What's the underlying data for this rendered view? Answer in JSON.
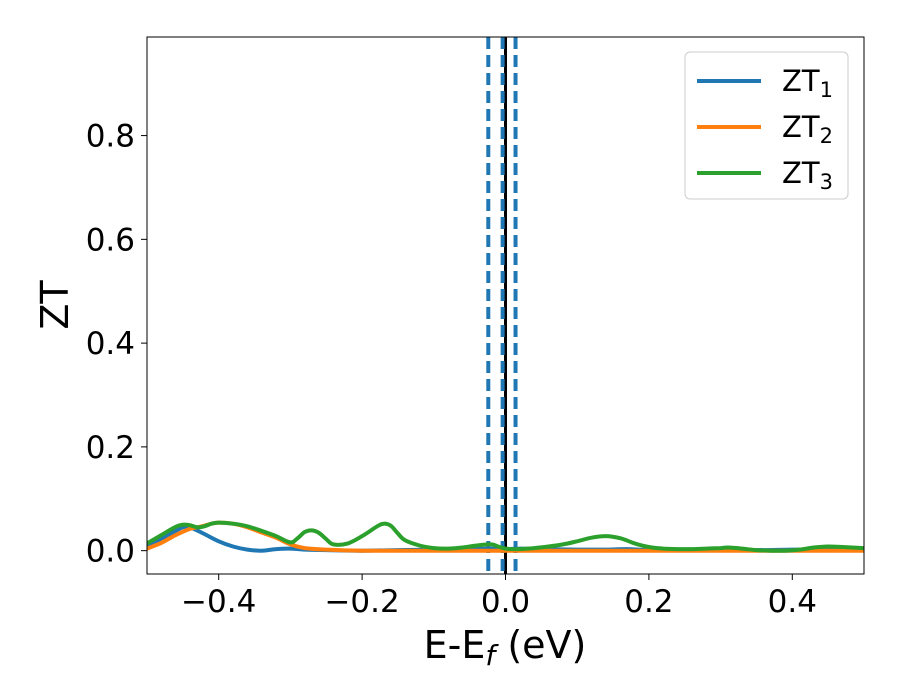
{
  "chart_data": {
    "type": "line",
    "title": "",
    "xlabel": "E-E",
    "xlabel_sub": "f",
    "xlabel_unit": " (eV)",
    "ylabel": "ZT",
    "xlim": [
      -0.5,
      0.5
    ],
    "ylim": [
      -0.045,
      0.99
    ],
    "x_ticks": [
      -0.4,
      -0.2,
      0.0,
      0.2,
      0.4
    ],
    "x_tick_labels": [
      "−0.4",
      "−0.2",
      "0.0",
      "0.2",
      "0.4"
    ],
    "y_ticks": [
      0.0,
      0.2,
      0.4,
      0.6,
      0.8
    ],
    "y_tick_labels": [
      "0.0",
      "0.2",
      "0.4",
      "0.6",
      "0.8"
    ],
    "grid": false,
    "legend_position": "top-right",
    "vertical_lines": [
      {
        "x": 0.0,
        "style": "solid",
        "color": "#000000"
      },
      {
        "x": -0.024,
        "style": "dashed",
        "color": "#1f77b4"
      },
      {
        "x": -0.004,
        "style": "dashed",
        "color": "#1f77b4"
      },
      {
        "x": 0.014,
        "style": "dashed",
        "color": "#1f77b4"
      }
    ],
    "series": [
      {
        "name": "ZT",
        "name_sub": "1",
        "color": "#1f77b4",
        "points": [
          [
            -0.5,
            0.008
          ],
          [
            -0.48,
            0.022
          ],
          [
            -0.46,
            0.038
          ],
          [
            -0.45,
            0.045
          ],
          [
            -0.44,
            0.045
          ],
          [
            -0.42,
            0.032
          ],
          [
            -0.4,
            0.018
          ],
          [
            -0.38,
            0.008
          ],
          [
            -0.36,
            0.002
          ],
          [
            -0.34,
            0.0
          ],
          [
            -0.32,
            0.003
          ],
          [
            -0.3,
            0.004
          ],
          [
            -0.28,
            0.002
          ],
          [
            -0.25,
            0.001
          ],
          [
            -0.2,
            0.0
          ],
          [
            -0.15,
            0.001
          ],
          [
            -0.1,
            0.002
          ],
          [
            -0.05,
            0.003
          ],
          [
            -0.02,
            0.004
          ],
          [
            0.0,
            0.003
          ],
          [
            0.02,
            0.004
          ],
          [
            0.05,
            0.003
          ],
          [
            0.1,
            0.002
          ],
          [
            0.14,
            0.002
          ],
          [
            0.17,
            0.003
          ],
          [
            0.2,
            0.001
          ],
          [
            0.25,
            0.001
          ],
          [
            0.3,
            0.002
          ],
          [
            0.35,
            0.001
          ],
          [
            0.4,
            0.002
          ],
          [
            0.45,
            0.002
          ],
          [
            0.5,
            0.003
          ]
        ]
      },
      {
        "name": "ZT",
        "name_sub": "2",
        "color": "#ff7f0e",
        "points": [
          [
            -0.5,
            0.004
          ],
          [
            -0.48,
            0.015
          ],
          [
            -0.46,
            0.03
          ],
          [
            -0.44,
            0.042
          ],
          [
            -0.43,
            0.045
          ],
          [
            -0.42,
            0.048
          ],
          [
            -0.41,
            0.052
          ],
          [
            -0.4,
            0.054
          ],
          [
            -0.38,
            0.052
          ],
          [
            -0.36,
            0.045
          ],
          [
            -0.34,
            0.035
          ],
          [
            -0.32,
            0.025
          ],
          [
            -0.3,
            0.012
          ],
          [
            -0.28,
            0.005
          ],
          [
            -0.25,
            0.002
          ],
          [
            -0.2,
            0.0
          ],
          [
            -0.15,
            0.0
          ],
          [
            -0.1,
            0.0
          ],
          [
            -0.05,
            0.0
          ],
          [
            0.0,
            0.0
          ],
          [
            0.05,
            0.0
          ],
          [
            0.1,
            0.0
          ],
          [
            0.15,
            0.0
          ],
          [
            0.2,
            0.0
          ],
          [
            0.3,
            0.0
          ],
          [
            0.4,
            0.0
          ],
          [
            0.5,
            0.0
          ]
        ]
      },
      {
        "name": "ZT",
        "name_sub": "3",
        "color": "#2ca02c",
        "points": [
          [
            -0.5,
            0.014
          ],
          [
            -0.48,
            0.03
          ],
          [
            -0.46,
            0.046
          ],
          [
            -0.45,
            0.05
          ],
          [
            -0.44,
            0.049
          ],
          [
            -0.43,
            0.045
          ],
          [
            -0.42,
            0.047
          ],
          [
            -0.41,
            0.052
          ],
          [
            -0.4,
            0.054
          ],
          [
            -0.38,
            0.052
          ],
          [
            -0.36,
            0.047
          ],
          [
            -0.34,
            0.038
          ],
          [
            -0.32,
            0.028
          ],
          [
            -0.3,
            0.016
          ],
          [
            -0.29,
            0.024
          ],
          [
            -0.28,
            0.036
          ],
          [
            -0.27,
            0.039
          ],
          [
            -0.26,
            0.034
          ],
          [
            -0.25,
            0.022
          ],
          [
            -0.24,
            0.012
          ],
          [
            -0.22,
            0.014
          ],
          [
            -0.2,
            0.028
          ],
          [
            -0.18,
            0.046
          ],
          [
            -0.17,
            0.052
          ],
          [
            -0.16,
            0.048
          ],
          [
            -0.15,
            0.033
          ],
          [
            -0.14,
            0.02
          ],
          [
            -0.12,
            0.01
          ],
          [
            -0.1,
            0.005
          ],
          [
            -0.08,
            0.004
          ],
          [
            -0.06,
            0.006
          ],
          [
            -0.04,
            0.01
          ],
          [
            -0.02,
            0.012
          ],
          [
            -0.01,
            0.008
          ],
          [
            0.0,
            0.004
          ],
          [
            0.02,
            0.003
          ],
          [
            0.04,
            0.005
          ],
          [
            0.06,
            0.008
          ],
          [
            0.08,
            0.012
          ],
          [
            0.1,
            0.018
          ],
          [
            0.12,
            0.025
          ],
          [
            0.14,
            0.028
          ],
          [
            0.16,
            0.024
          ],
          [
            0.18,
            0.014
          ],
          [
            0.2,
            0.007
          ],
          [
            0.22,
            0.004
          ],
          [
            0.24,
            0.003
          ],
          [
            0.26,
            0.003
          ],
          [
            0.28,
            0.004
          ],
          [
            0.3,
            0.005
          ],
          [
            0.31,
            0.006
          ],
          [
            0.33,
            0.004
          ],
          [
            0.35,
            0.001
          ],
          [
            0.37,
            0.0
          ],
          [
            0.39,
            0.0
          ],
          [
            0.41,
            0.002
          ],
          [
            0.43,
            0.006
          ],
          [
            0.45,
            0.008
          ],
          [
            0.47,
            0.007
          ],
          [
            0.5,
            0.005
          ]
        ]
      }
    ]
  }
}
